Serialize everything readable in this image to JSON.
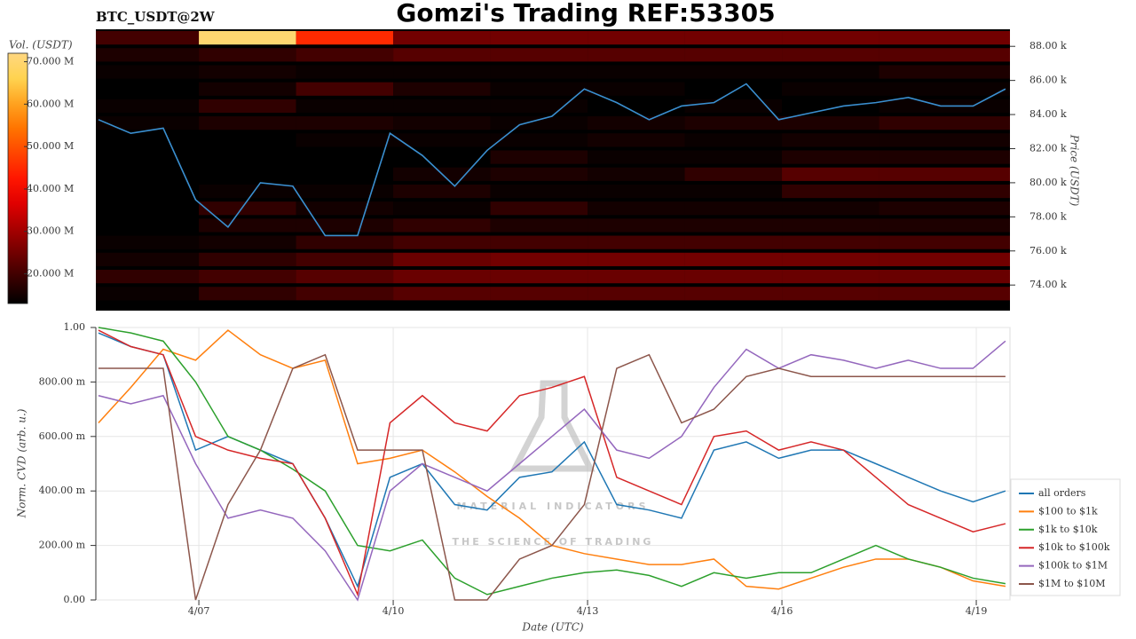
{
  "watermark": {
    "name": "MATERIAL INDICATORS",
    "tagline": "THE SCIENCE OF TRADING"
  },
  "chart_data": [
    {
      "type": "heatmap",
      "title": "Gomzi's Trading REF:53305",
      "subtitle": "BTC_USDT@2W",
      "colorbar_label": "Vol. (USDT)",
      "ylabel": "Price (USDT)",
      "clim": [
        13000000,
        72000000
      ],
      "cticks": [
        {
          "value": 20000000,
          "label": "20.000 M"
        },
        {
          "value": 30000000,
          "label": "30.000 M"
        },
        {
          "value": 40000000,
          "label": "40.000 M"
        },
        {
          "value": 50000000,
          "label": "50.000 M"
        },
        {
          "value": 60000000,
          "label": "60.000 M"
        },
        {
          "value": 70000000,
          "label": "70.000 M"
        }
      ],
      "xlim": [
        5.41,
        19.52
      ],
      "ylim": [
        72500,
        89000
      ],
      "yticks": [
        {
          "value": 74000,
          "label": "74.00 k"
        },
        {
          "value": 76000,
          "label": "76.00 k"
        },
        {
          "value": 78000,
          "label": "78.00 k"
        },
        {
          "value": 80000,
          "label": "80.00 k"
        },
        {
          "value": 82000,
          "label": "82.00 k"
        },
        {
          "value": 84000,
          "label": "84.00 k"
        },
        {
          "value": 86000,
          "label": "86.00 k"
        },
        {
          "value": 88000,
          "label": "88.00 k"
        }
      ],
      "x_bins": [
        5.41,
        7,
        8.5,
        10,
        11.5,
        13,
        14.5,
        16,
        17.5,
        19.52
      ],
      "y_bins": [
        73000,
        74000,
        75000,
        76000,
        77000,
        78000,
        79000,
        80000,
        81000,
        82000,
        83000,
        84000,
        85000,
        86000,
        87000,
        88000,
        89000
      ],
      "volumes": [
        [
          14000000,
          18000000,
          20000000,
          22000000,
          22000000,
          22000000,
          22000000,
          22000000,
          22000000
        ],
        [
          18000000,
          20000000,
          22000000,
          24000000,
          24000000,
          24000000,
          24000000,
          24000000,
          24000000
        ],
        [
          15000000,
          18000000,
          20000000,
          24000000,
          25000000,
          25000000,
          25000000,
          25000000,
          25000000
        ],
        [
          14000000,
          15000000,
          18000000,
          20000000,
          20000000,
          20000000,
          20000000,
          20000000,
          20000000
        ],
        [
          13000000,
          16000000,
          16000000,
          18000000,
          16000000,
          16000000,
          16000000,
          16000000,
          16000000
        ],
        [
          13000000,
          18000000,
          15000000,
          14000000,
          18000000,
          15000000,
          15000000,
          15000000,
          16000000
        ],
        [
          13000000,
          14000000,
          14000000,
          16000000,
          14000000,
          14000000,
          14000000,
          18000000,
          18000000
        ],
        [
          12000000,
          13000000,
          13000000,
          15000000,
          16000000,
          15000000,
          18000000,
          22000000,
          22000000
        ],
        [
          12000000,
          13000000,
          13000000,
          13000000,
          16000000,
          14000000,
          14000000,
          16000000,
          16000000
        ],
        [
          13000000,
          13000000,
          14000000,
          14000000,
          14000000,
          15000000,
          14000000,
          15000000,
          15000000
        ],
        [
          14000000,
          16000000,
          16000000,
          15000000,
          14000000,
          15000000,
          16000000,
          16000000,
          18000000
        ],
        [
          14000000,
          18000000,
          14000000,
          14000000,
          14000000,
          13000000,
          14000000,
          13000000,
          14000000
        ],
        [
          13000000,
          15000000,
          20000000,
          16000000,
          14000000,
          14000000,
          13000000,
          14000000,
          14000000
        ],
        [
          14000000,
          15000000,
          14000000,
          14000000,
          14000000,
          14000000,
          14000000,
          14000000,
          16000000
        ],
        [
          16000000,
          18000000,
          20000000,
          22000000,
          22000000,
          22000000,
          22000000,
          22000000,
          22000000
        ],
        [
          20000000,
          70000000,
          45000000,
          25000000,
          25000000,
          25000000,
          25000000,
          25000000,
          25000000
        ]
      ],
      "price": {
        "color": "#3a8fd0",
        "x": [
          5.45,
          5.95,
          6.45,
          6.95,
          7.45,
          7.95,
          8.45,
          8.95,
          9.45,
          9.95,
          10.45,
          10.95,
          11.45,
          11.95,
          12.45,
          12.95,
          13.45,
          13.95,
          14.45,
          14.95,
          15.45,
          15.95,
          16.45,
          16.95,
          17.45,
          17.95,
          18.45,
          18.95,
          19.45
        ],
        "values": [
          83700,
          82900,
          83200,
          79000,
          77400,
          80000,
          79800,
          76900,
          76900,
          82900,
          81600,
          79800,
          81900,
          83400,
          83900,
          85500,
          84700,
          83700,
          84500,
          84700,
          85800,
          83700,
          84100,
          84500,
          84700,
          85000,
          84500,
          84500,
          85500
        ]
      }
    },
    {
      "type": "line",
      "ylabel": "Norm. CVD (arb. u.)",
      "xlabel": "Date (UTC)",
      "grid": true,
      "legend": "right",
      "xlim": [
        5.41,
        19.52
      ],
      "xticks": [
        {
          "value": 7,
          "label": "4/07"
        },
        {
          "value": 10,
          "label": "4/10"
        },
        {
          "value": 13,
          "label": "4/13"
        },
        {
          "value": 16,
          "label": "4/16"
        },
        {
          "value": 19,
          "label": "4/19"
        }
      ],
      "ylim": [
        0,
        1
      ],
      "yticks": [
        {
          "value": 0,
          "label": "0.00"
        },
        {
          "value": 0.2,
          "label": "200.00 m"
        },
        {
          "value": 0.4,
          "label": "400.00 m"
        },
        {
          "value": 0.6,
          "label": "600.00 m"
        },
        {
          "value": 0.8,
          "label": "800.00 m"
        },
        {
          "value": 1,
          "label": "1.00"
        }
      ],
      "x": [
        5.45,
        5.95,
        6.45,
        6.95,
        7.45,
        7.95,
        8.45,
        8.95,
        9.45,
        9.95,
        10.45,
        10.95,
        11.45,
        11.95,
        12.45,
        12.95,
        13.45,
        13.95,
        14.45,
        14.95,
        15.45,
        15.95,
        16.45,
        16.95,
        17.45,
        17.95,
        18.45,
        18.95,
        19.45
      ],
      "series": [
        {
          "name": "all orders",
          "color": "#1f77b4",
          "values": [
            0.98,
            0.93,
            0.9,
            0.55,
            0.6,
            0.55,
            0.5,
            0.3,
            0.05,
            0.45,
            0.5,
            0.35,
            0.33,
            0.45,
            0.47,
            0.58,
            0.35,
            0.33,
            0.3,
            0.55,
            0.58,
            0.52,
            0.55,
            0.55,
            0.5,
            0.45,
            0.4,
            0.36,
            0.4
          ]
        },
        {
          "name": "$100 to $1k",
          "color": "#ff7f0e",
          "values": [
            0.65,
            0.78,
            0.92,
            0.88,
            0.99,
            0.9,
            0.85,
            0.88,
            0.5,
            0.52,
            0.55,
            0.47,
            0.38,
            0.3,
            0.2,
            0.17,
            0.15,
            0.13,
            0.13,
            0.15,
            0.05,
            0.04,
            0.08,
            0.12,
            0.15,
            0.15,
            0.12,
            0.07,
            0.05
          ]
        },
        {
          "name": "$1k to $10k",
          "color": "#2ca02c",
          "values": [
            1.0,
            0.98,
            0.95,
            0.8,
            0.6,
            0.55,
            0.48,
            0.4,
            0.2,
            0.18,
            0.22,
            0.08,
            0.02,
            0.05,
            0.08,
            0.1,
            0.11,
            0.09,
            0.05,
            0.1,
            0.08,
            0.1,
            0.1,
            0.15,
            0.2,
            0.15,
            0.12,
            0.08,
            0.06
          ]
        },
        {
          "name": "$10k to $100k",
          "color": "#d62728",
          "values": [
            0.99,
            0.93,
            0.9,
            0.6,
            0.55,
            0.52,
            0.5,
            0.3,
            0.02,
            0.65,
            0.75,
            0.65,
            0.62,
            0.75,
            0.78,
            0.82,
            0.45,
            0.4,
            0.35,
            0.6,
            0.62,
            0.55,
            0.58,
            0.55,
            0.45,
            0.35,
            0.3,
            0.25,
            0.28
          ]
        },
        {
          "name": "$100k to $1M",
          "color": "#9467bd",
          "values": [
            0.75,
            0.72,
            0.75,
            0.5,
            0.3,
            0.33,
            0.3,
            0.18,
            0.0,
            0.4,
            0.5,
            0.45,
            0.4,
            0.5,
            0.6,
            0.7,
            0.55,
            0.52,
            0.6,
            0.78,
            0.92,
            0.85,
            0.9,
            0.88,
            0.85,
            0.88,
            0.85,
            0.85,
            0.95
          ]
        },
        {
          "name": "$1M to $10M",
          "color": "#8c564b",
          "values": [
            0.85,
            0.85,
            0.85,
            0.0,
            0.35,
            0.55,
            0.85,
            0.9,
            0.55,
            0.55,
            0.55,
            0.0,
            0.0,
            0.15,
            0.2,
            0.35,
            0.85,
            0.9,
            0.65,
            0.7,
            0.82,
            0.85,
            0.82,
            0.82,
            0.82,
            0.82,
            0.82,
            0.82,
            0.82
          ]
        }
      ]
    }
  ]
}
